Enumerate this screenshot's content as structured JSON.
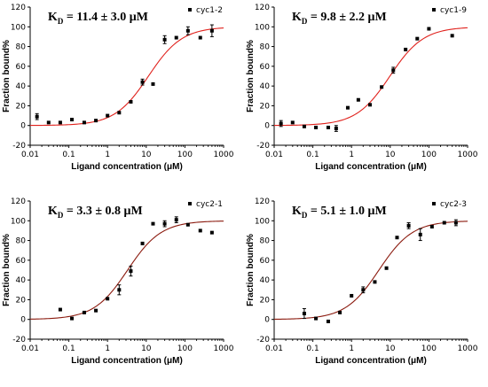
{
  "chart_data": [
    {
      "type": "scatter",
      "kd_label": {
        "prefix": "K",
        "sub": "D",
        "rest": " = 11.4 ± 3.0 μM"
      },
      "legend": "cyc1-2",
      "xlabel": "Ligand concentration (μM)",
      "ylabel": "Fraction bound%",
      "xscale": "log",
      "xlim": [
        0.01,
        1000
      ],
      "ylim": [
        -20,
        120
      ],
      "x_ticks": [
        "0.01",
        "0.1",
        "1",
        "10",
        "100",
        "1000"
      ],
      "y_ticks": [
        "-20",
        "0",
        "20",
        "40",
        "60",
        "80",
        "100",
        "120"
      ],
      "grid": false,
      "legend_position": "top-right",
      "fit": {
        "kd": 11.4,
        "bottom": 0,
        "top": 100,
        "color": "#e0211c"
      },
      "points": [
        {
          "x": 0.015,
          "y": 9,
          "err": 3
        },
        {
          "x": 0.03,
          "y": 3,
          "err": 0
        },
        {
          "x": 0.06,
          "y": 3,
          "err": 0
        },
        {
          "x": 0.12,
          "y": 6,
          "err": 0
        },
        {
          "x": 0.25,
          "y": 3,
          "err": 0
        },
        {
          "x": 0.5,
          "y": 5,
          "err": 0
        },
        {
          "x": 1,
          "y": 10,
          "err": 0
        },
        {
          "x": 2,
          "y": 13,
          "err": 0
        },
        {
          "x": 4,
          "y": 24,
          "err": 0
        },
        {
          "x": 8,
          "y": 44,
          "err": 3
        },
        {
          "x": 15,
          "y": 42,
          "err": 0
        },
        {
          "x": 30,
          "y": 87,
          "err": 4
        },
        {
          "x": 60,
          "y": 89,
          "err": 0
        },
        {
          "x": 120,
          "y": 96,
          "err": 4
        },
        {
          "x": 250,
          "y": 89,
          "err": 0
        },
        {
          "x": 500,
          "y": 96,
          "err": 6
        }
      ]
    },
    {
      "type": "scatter",
      "kd_label": {
        "prefix": "K",
        "sub": "D",
        "rest": " = 9.8 ± 2.2 μM"
      },
      "legend": "cyc1-9",
      "xlabel": "Ligand concentration (μM)",
      "ylabel": "Fraction bound%",
      "xscale": "log",
      "xlim": [
        0.01,
        1000
      ],
      "ylim": [
        -20,
        120
      ],
      "x_ticks": [
        "0.01",
        "0.1",
        "1",
        "10",
        "100",
        "1000"
      ],
      "y_ticks": [
        "-20",
        "0",
        "20",
        "40",
        "60",
        "80",
        "100",
        "120"
      ],
      "grid": false,
      "legend_position": "top-right",
      "fit": {
        "kd": 9.8,
        "bottom": 0,
        "top": 100,
        "color": "#e0211c"
      },
      "points": [
        {
          "x": 0.015,
          "y": 2,
          "err": 3
        },
        {
          "x": 0.03,
          "y": 3,
          "err": 0
        },
        {
          "x": 0.06,
          "y": -1,
          "err": 0
        },
        {
          "x": 0.12,
          "y": -2,
          "err": 0
        },
        {
          "x": 0.25,
          "y": -2,
          "err": 0
        },
        {
          "x": 0.4,
          "y": -3,
          "err": 3
        },
        {
          "x": 0.8,
          "y": 18,
          "err": 0
        },
        {
          "x": 1.5,
          "y": 26,
          "err": 0
        },
        {
          "x": 3,
          "y": 21,
          "err": 0
        },
        {
          "x": 6,
          "y": 39,
          "err": 0
        },
        {
          "x": 12,
          "y": 56,
          "err": 3
        },
        {
          "x": 25,
          "y": 77,
          "err": 0
        },
        {
          "x": 50,
          "y": 88,
          "err": 0
        },
        {
          "x": 100,
          "y": 98,
          "err": 0
        },
        {
          "x": 400,
          "y": 91,
          "err": 0
        }
      ]
    },
    {
      "type": "scatter",
      "kd_label": {
        "prefix": "K",
        "sub": "D",
        "rest": " = 3.3 ± 0.8 μM"
      },
      "legend": "cyc2-1",
      "xlabel": "Ligand concentration (μM)",
      "ylabel": "Fraction bound%",
      "xscale": "log",
      "xlim": [
        0.01,
        1000
      ],
      "ylim": [
        -20,
        120
      ],
      "x_ticks": [
        "0.01",
        "0.1",
        "1",
        "10",
        "100",
        "1000"
      ],
      "y_ticks": [
        "-20",
        "0",
        "20",
        "40",
        "60",
        "80",
        "100",
        "120"
      ],
      "grid": false,
      "legend_position": "top-right",
      "fit": {
        "kd": 3.3,
        "bottom": 0,
        "top": 100,
        "color": "#8b1a0e"
      },
      "points": [
        {
          "x": 0.06,
          "y": 10,
          "err": 0
        },
        {
          "x": 0.12,
          "y": 1,
          "err": 0
        },
        {
          "x": 0.25,
          "y": 7,
          "err": 0
        },
        {
          "x": 0.5,
          "y": 9,
          "err": 0
        },
        {
          "x": 1,
          "y": 21,
          "err": 0
        },
        {
          "x": 2,
          "y": 30,
          "err": 5
        },
        {
          "x": 4,
          "y": 49,
          "err": 5
        },
        {
          "x": 8,
          "y": 77,
          "err": 0
        },
        {
          "x": 15,
          "y": 97,
          "err": 0
        },
        {
          "x": 30,
          "y": 97,
          "err": 3
        },
        {
          "x": 60,
          "y": 101,
          "err": 3
        },
        {
          "x": 120,
          "y": 96,
          "err": 0
        },
        {
          "x": 250,
          "y": 90,
          "err": 0
        },
        {
          "x": 500,
          "y": 88,
          "err": 0
        }
      ]
    },
    {
      "type": "scatter",
      "kd_label": {
        "prefix": "K",
        "sub": "D",
        "rest": " = 5.1 ± 1.0 μM"
      },
      "legend": "cyc2-3",
      "xlabel": "Ligand concentration (μM)",
      "ylabel": "Fraction bound%",
      "xscale": "log",
      "xlim": [
        0.01,
        1000
      ],
      "ylim": [
        -20,
        120
      ],
      "x_ticks": [
        "0.01",
        "0.1",
        "1",
        "10",
        "100",
        "1000"
      ],
      "y_ticks": [
        "-20",
        "0",
        "20",
        "40",
        "60",
        "80",
        "100",
        "120"
      ],
      "grid": false,
      "legend_position": "top-right",
      "fit": {
        "kd": 5.1,
        "bottom": 0,
        "top": 100,
        "color": "#8b1a0e"
      },
      "points": [
        {
          "x": 0.06,
          "y": 6,
          "err": 5
        },
        {
          "x": 0.12,
          "y": 1,
          "err": 0
        },
        {
          "x": 0.25,
          "y": -2,
          "err": 0
        },
        {
          "x": 0.5,
          "y": 7,
          "err": 0
        },
        {
          "x": 1,
          "y": 24,
          "err": 0
        },
        {
          "x": 2,
          "y": 30,
          "err": 3
        },
        {
          "x": 4,
          "y": 38,
          "err": 0
        },
        {
          "x": 8,
          "y": 52,
          "err": 0
        },
        {
          "x": 15,
          "y": 83,
          "err": 0
        },
        {
          "x": 30,
          "y": 95,
          "err": 3
        },
        {
          "x": 60,
          "y": 86,
          "err": 6
        },
        {
          "x": 120,
          "y": 94,
          "err": 0
        },
        {
          "x": 250,
          "y": 98,
          "err": 0
        },
        {
          "x": 500,
          "y": 98,
          "err": 3
        }
      ]
    }
  ]
}
